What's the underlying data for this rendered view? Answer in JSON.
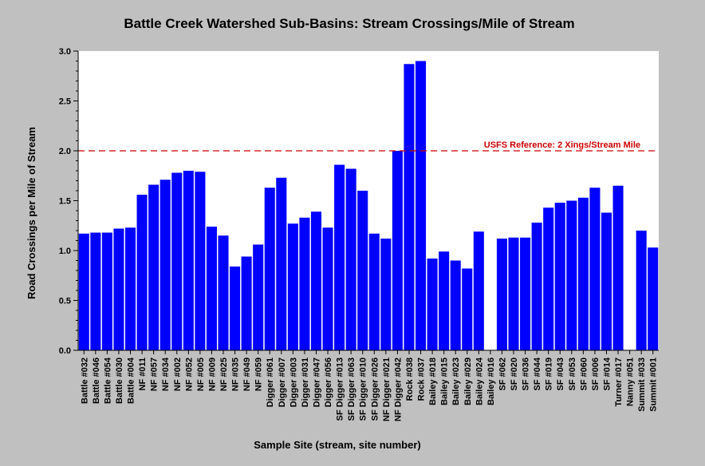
{
  "chart_data": {
    "type": "bar",
    "title": "Battle Creek Watershed Sub-Basins: Stream Crossings/Mile of Stream",
    "xlabel": "Sample Site (stream, site number)",
    "ylabel": "Road Crossings per Mile of Stream",
    "ylim": [
      0,
      3.0
    ],
    "yticks": [
      "0.0",
      "0.5",
      "1.0",
      "1.5",
      "2.0",
      "2.5",
      "3.0"
    ],
    "grid": false,
    "categories": [
      "Battle #032",
      "Battle #046",
      "Battle #054",
      "Battle #030",
      "Battle #004",
      "NF #011",
      "NF #057",
      "NF #034",
      "NF #002",
      "NF #052",
      "NF #005",
      "NF #009",
      "NF #025",
      "NF #035",
      "NF #049",
      "NF #059",
      "Digger #061",
      "Digger #007",
      "Digger #003",
      "Digger #031",
      "Digger #047",
      "Digger #056",
      "SF Digger #013",
      "SF Digger #063",
      "SF Digger #010",
      "SF Digger #026",
      "NF Digger #021",
      "NF Digger #042",
      "Rock #038",
      "Rock #037",
      "Bailey #018",
      "Bailey #015",
      "Bailey #023",
      "Bailey #029",
      "Bailey #024",
      "Bailey #016",
      "SF #062",
      "SF #020",
      "SF #036",
      "SF #044",
      "SF #019",
      "SF #043",
      "SF #053",
      "SF #060",
      "SF #006",
      "SF #014",
      "Turner #017",
      "Nanny #051",
      "Summit #033",
      "Summit #001"
    ],
    "values": [
      1.17,
      1.18,
      1.18,
      1.22,
      1.23,
      1.56,
      1.66,
      1.71,
      1.78,
      1.8,
      1.79,
      1.24,
      1.15,
      0.84,
      0.94,
      1.06,
      1.63,
      1.73,
      1.27,
      1.33,
      1.39,
      1.23,
      1.86,
      1.82,
      1.6,
      1.17,
      1.12,
      2.0,
      2.87,
      2.9,
      0.92,
      0.99,
      0.9,
      0.82,
      1.19,
      0,
      1.12,
      1.13,
      1.13,
      1.28,
      1.43,
      1.48,
      1.5,
      1.53,
      1.63,
      1.38,
      1.65,
      0,
      1.2,
      1.03
    ],
    "bar_color": "#0000ff",
    "reference_line": {
      "value": 2.0,
      "label": "USFS Reference: 2 Xings/Stream Mile",
      "color": "#cc0000"
    }
  }
}
